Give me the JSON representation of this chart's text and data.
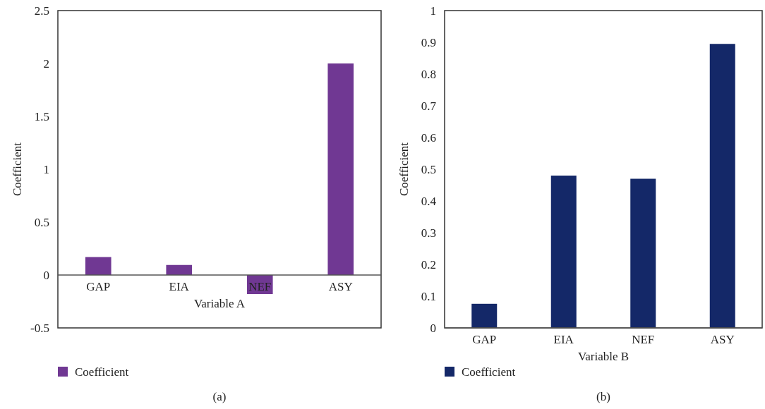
{
  "chart_data": [
    {
      "type": "bar",
      "xlabel": "Variable A",
      "ylabel": "Coefficient",
      "categories": [
        "GAP",
        "EIA",
        "NEF",
        "ASY"
      ],
      "series": [
        {
          "name": "Coefficient",
          "color": "#703893",
          "values": [
            0.17,
            0.095,
            -0.18,
            2.0
          ]
        }
      ],
      "ylim": [
        -0.5,
        2.5
      ],
      "yticks": [
        -0.5,
        0,
        0.5,
        1,
        1.5,
        2,
        2.5
      ],
      "legend": "bottom left",
      "grid": false,
      "annotations": [
        "(a)"
      ]
    },
    {
      "type": "bar",
      "xlabel": "Variable B",
      "ylabel": "Coefficient",
      "categories": [
        "GAP",
        "EIA",
        "NEF",
        "ASY"
      ],
      "series": [
        {
          "name": "Coefficient",
          "color": "#142868",
          "values": [
            0.076,
            0.48,
            0.47,
            0.895
          ]
        }
      ],
      "ylim": [
        0,
        1
      ],
      "yticks": [
        0,
        0.1,
        0.2,
        0.3,
        0.4,
        0.5,
        0.6,
        0.7,
        0.8,
        0.9,
        1
      ],
      "legend": "bottom left",
      "grid": false,
      "annotations": [
        "(b)"
      ]
    }
  ]
}
